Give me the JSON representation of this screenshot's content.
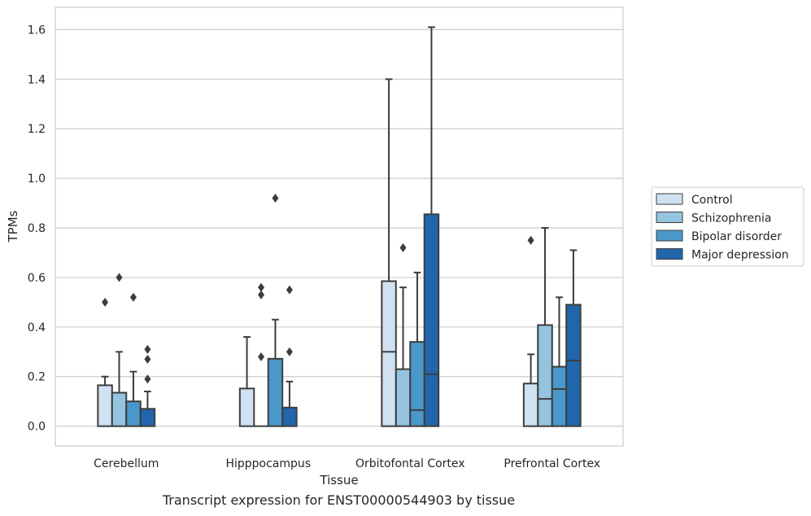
{
  "chart_data": {
    "type": "box",
    "xlabel": "Tissue",
    "ylabel": "TPMs",
    "ylim": [
      -0.08,
      1.69
    ],
    "yticks": [
      0.0,
      0.2,
      0.4,
      0.6,
      0.8,
      1.0,
      1.2,
      1.4,
      1.6
    ],
    "ytick_labels": [
      "0.0",
      "0.2",
      "0.4",
      "0.6",
      "0.8",
      "1.0",
      "1.2",
      "1.4",
      "1.6"
    ],
    "grid": true,
    "legend_position": "right",
    "categories": [
      "Cerebellum",
      "Hipppocampus",
      "Orbitofontal Cortex",
      "Prefrontal Cortex"
    ],
    "series": [
      {
        "name": "Control",
        "color": "#d0e1f2",
        "boxes": [
          {
            "q1": 0.0,
            "median": 0.0,
            "q3": 0.165,
            "whisker_low": 0.0,
            "whisker_high": 0.2,
            "outliers": [
              0.5
            ]
          },
          {
            "q1": 0.0,
            "median": 0.0,
            "q3": 0.152,
            "whisker_low": 0.0,
            "whisker_high": 0.36,
            "outliers": []
          },
          {
            "q1": 0.0,
            "median": 0.3,
            "q3": 0.585,
            "whisker_low": 0.0,
            "whisker_high": 1.4,
            "outliers": []
          },
          {
            "q1": 0.0,
            "median": 0.0,
            "q3": 0.172,
            "whisker_low": 0.0,
            "whisker_high": 0.29,
            "outliers": [
              0.75
            ]
          }
        ]
      },
      {
        "name": "Schizophrenia",
        "color": "#94c4df",
        "boxes": [
          {
            "q1": 0.0,
            "median": 0.0,
            "q3": 0.135,
            "whisker_low": 0.0,
            "whisker_high": 0.3,
            "outliers": [
              0.6
            ]
          },
          {
            "q1": 0.0,
            "median": 0.0,
            "q3": 0.0,
            "whisker_low": 0.0,
            "whisker_high": 0.0,
            "outliers": [
              0.28,
              0.53,
              0.56
            ]
          },
          {
            "q1": 0.0,
            "median": 0.0,
            "q3": 0.23,
            "whisker_low": 0.0,
            "whisker_high": 0.56,
            "outliers": [
              0.72
            ]
          },
          {
            "q1": 0.0,
            "median": 0.11,
            "q3": 0.408,
            "whisker_low": 0.0,
            "whisker_high": 0.8,
            "outliers": []
          }
        ]
      },
      {
        "name": "Bipolar disorder",
        "color": "#4a98c9",
        "boxes": [
          {
            "q1": 0.0,
            "median": 0.0,
            "q3": 0.1,
            "whisker_low": 0.0,
            "whisker_high": 0.22,
            "outliers": [
              0.52
            ]
          },
          {
            "q1": 0.0,
            "median": 0.0,
            "q3": 0.272,
            "whisker_low": 0.0,
            "whisker_high": 0.43,
            "outliers": [
              0.92
            ]
          },
          {
            "q1": 0.0,
            "median": 0.065,
            "q3": 0.34,
            "whisker_low": 0.0,
            "whisker_high": 0.62,
            "outliers": []
          },
          {
            "q1": 0.0,
            "median": 0.15,
            "q3": 0.24,
            "whisker_low": 0.0,
            "whisker_high": 0.52,
            "outliers": []
          }
        ]
      },
      {
        "name": "Major depression",
        "color": "#2166ac",
        "boxes": [
          {
            "q1": 0.0,
            "median": 0.0,
            "q3": 0.07,
            "whisker_low": 0.0,
            "whisker_high": 0.14,
            "outliers": [
              0.19,
              0.27,
              0.31
            ]
          },
          {
            "q1": 0.0,
            "median": 0.0,
            "q3": 0.075,
            "whisker_low": 0.0,
            "whisker_high": 0.18,
            "outliers": [
              0.3,
              0.55
            ]
          },
          {
            "q1": 0.0,
            "median": 0.21,
            "q3": 0.855,
            "whisker_low": 0.0,
            "whisker_high": 1.61,
            "outliers": []
          },
          {
            "q1": 0.0,
            "median": 0.265,
            "q3": 0.49,
            "whisker_low": 0.0,
            "whisker_high": 0.71,
            "outliers": []
          }
        ]
      }
    ]
  },
  "caption": "Transcript expression for ENST00000544903 by tissue"
}
